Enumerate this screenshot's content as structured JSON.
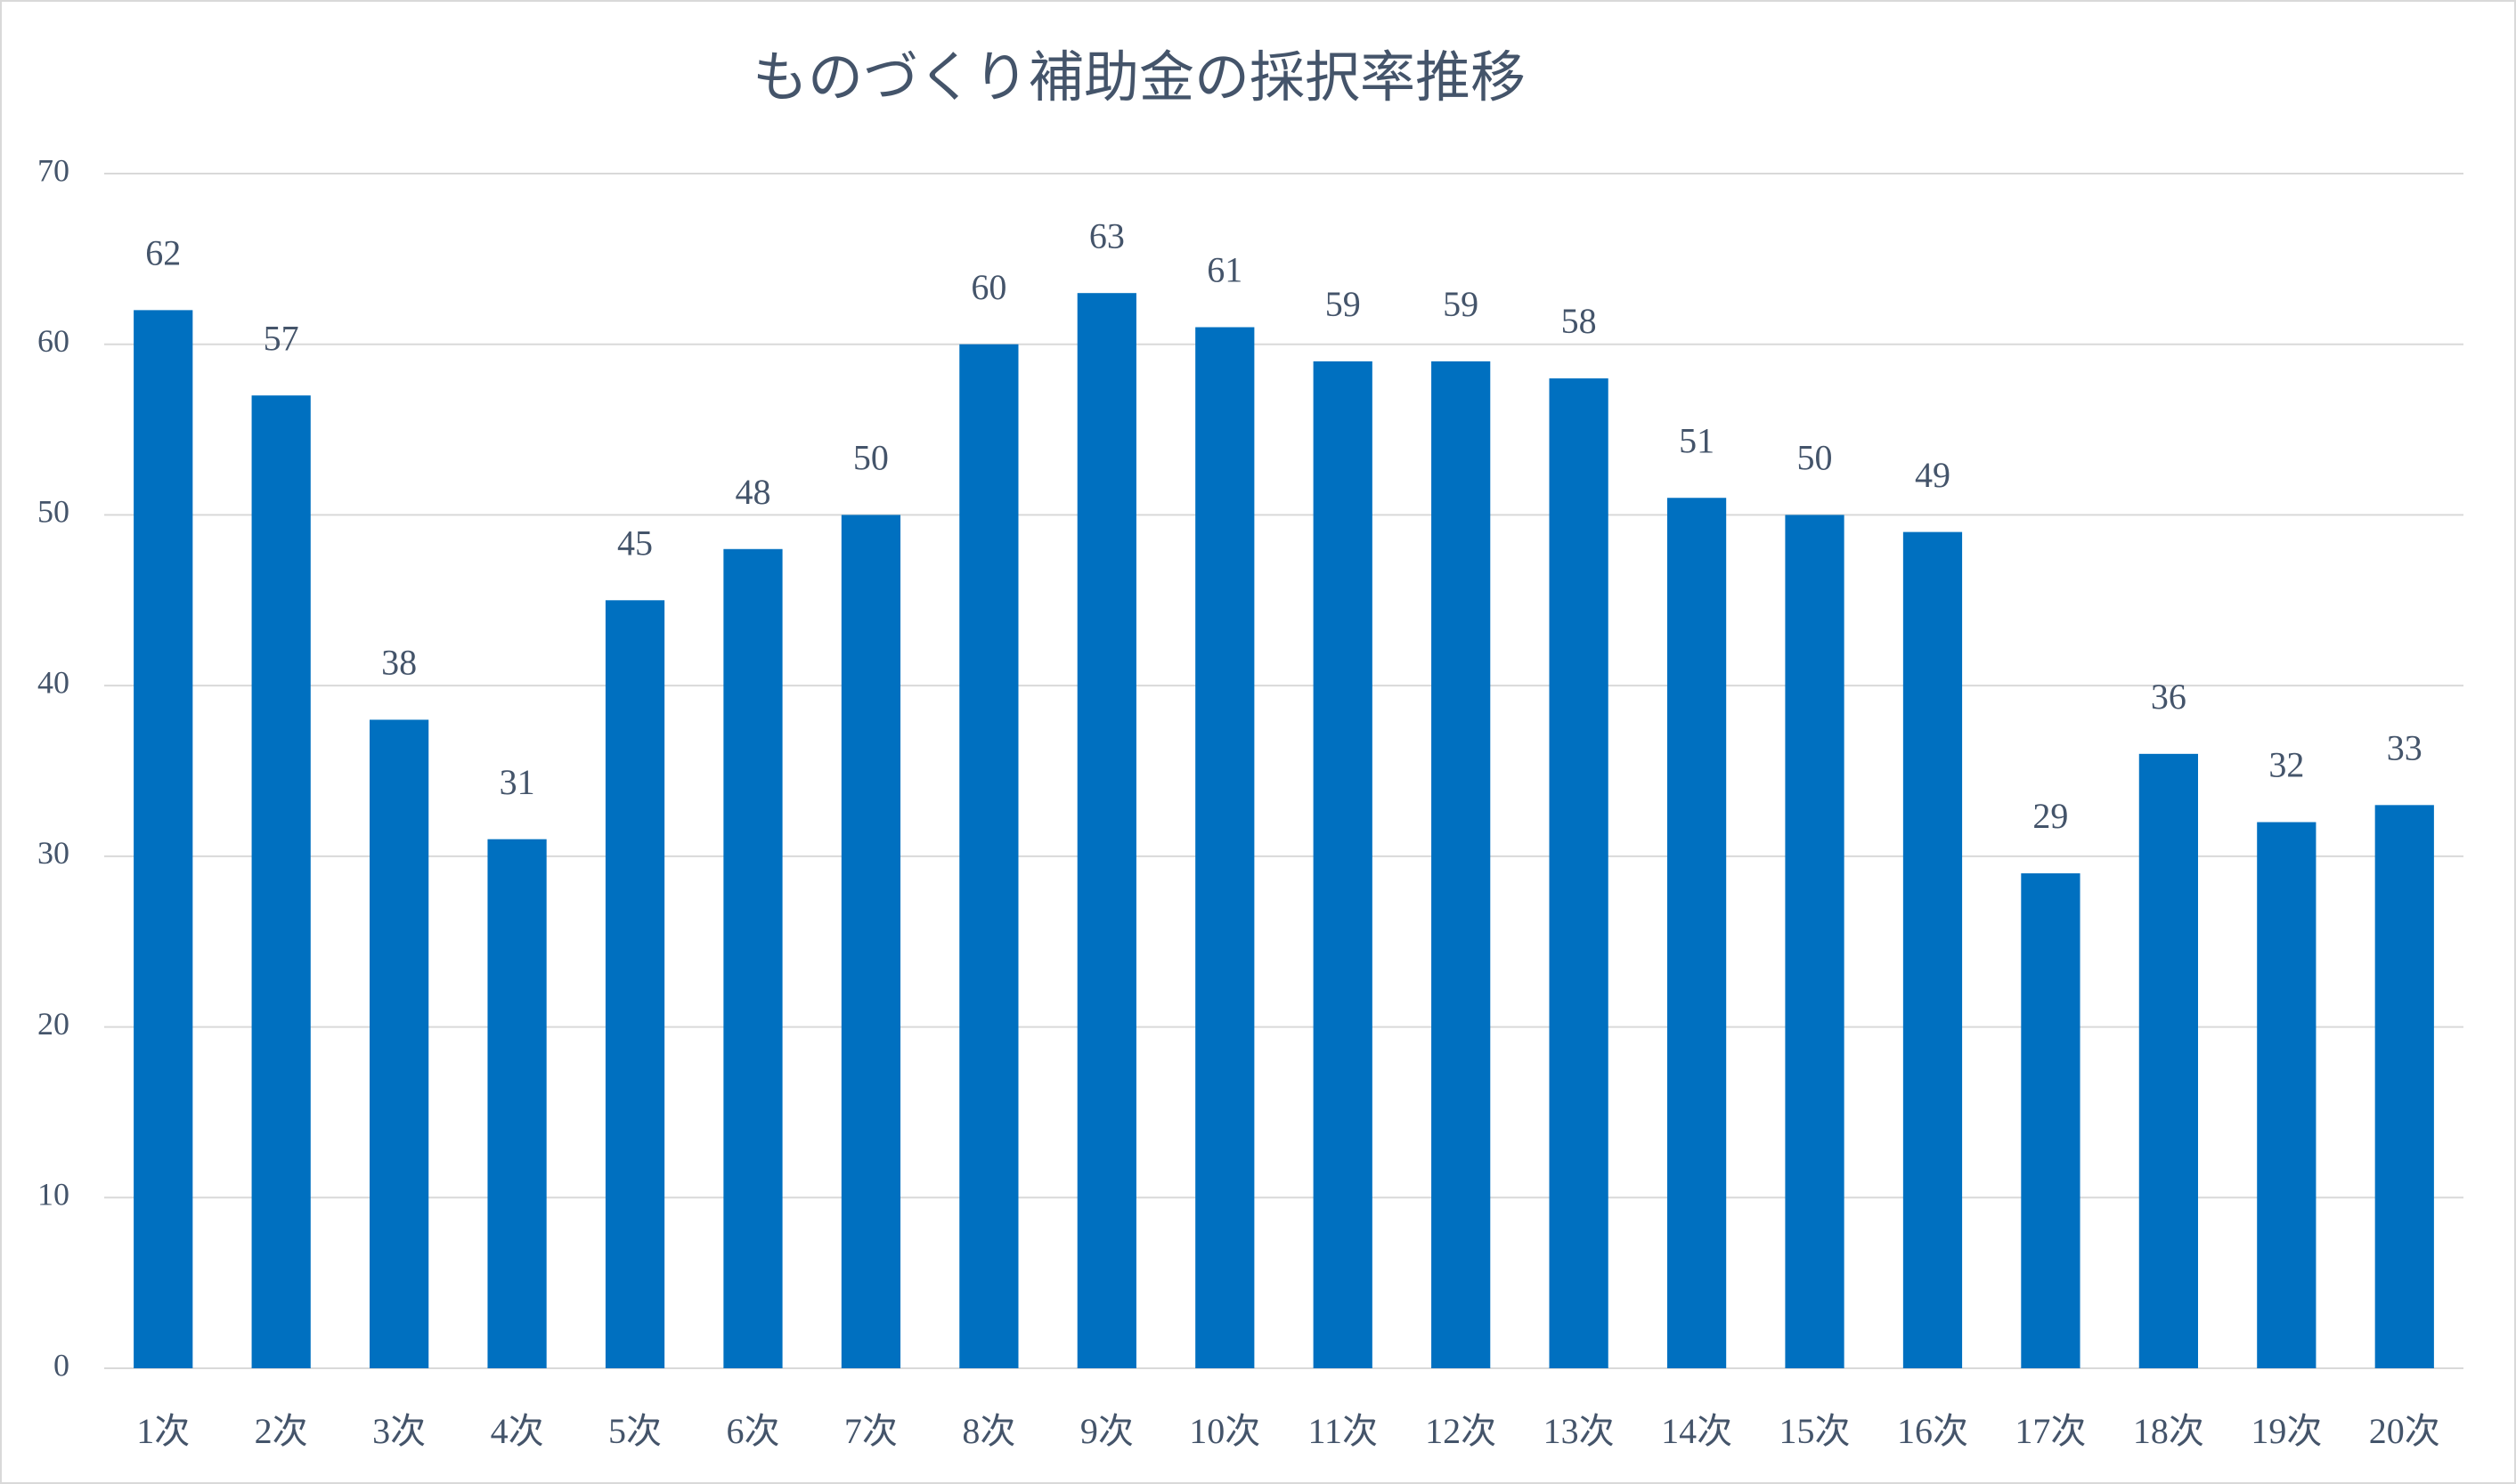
{
  "chart_data": {
    "type": "bar",
    "title": "ものづくり補助金の採択率推移",
    "categories": [
      "1次",
      "2次",
      "3次",
      "4次",
      "5次",
      "6次",
      "7次",
      "8次",
      "9次",
      "10次",
      "11次",
      "12次",
      "13次",
      "14次",
      "15次",
      "16次",
      "17次",
      "18次",
      "19次",
      "20次"
    ],
    "values": [
      62,
      57,
      38,
      31,
      45,
      48,
      50,
      60,
      63,
      61,
      59,
      59,
      58,
      51,
      50,
      49,
      29,
      36,
      32,
      33
    ],
    "color": "#0070c0",
    "ylim": [
      0,
      70
    ],
    "yticks": [
      0,
      10,
      20,
      30,
      40,
      50,
      60,
      70
    ],
    "grid": true
  }
}
